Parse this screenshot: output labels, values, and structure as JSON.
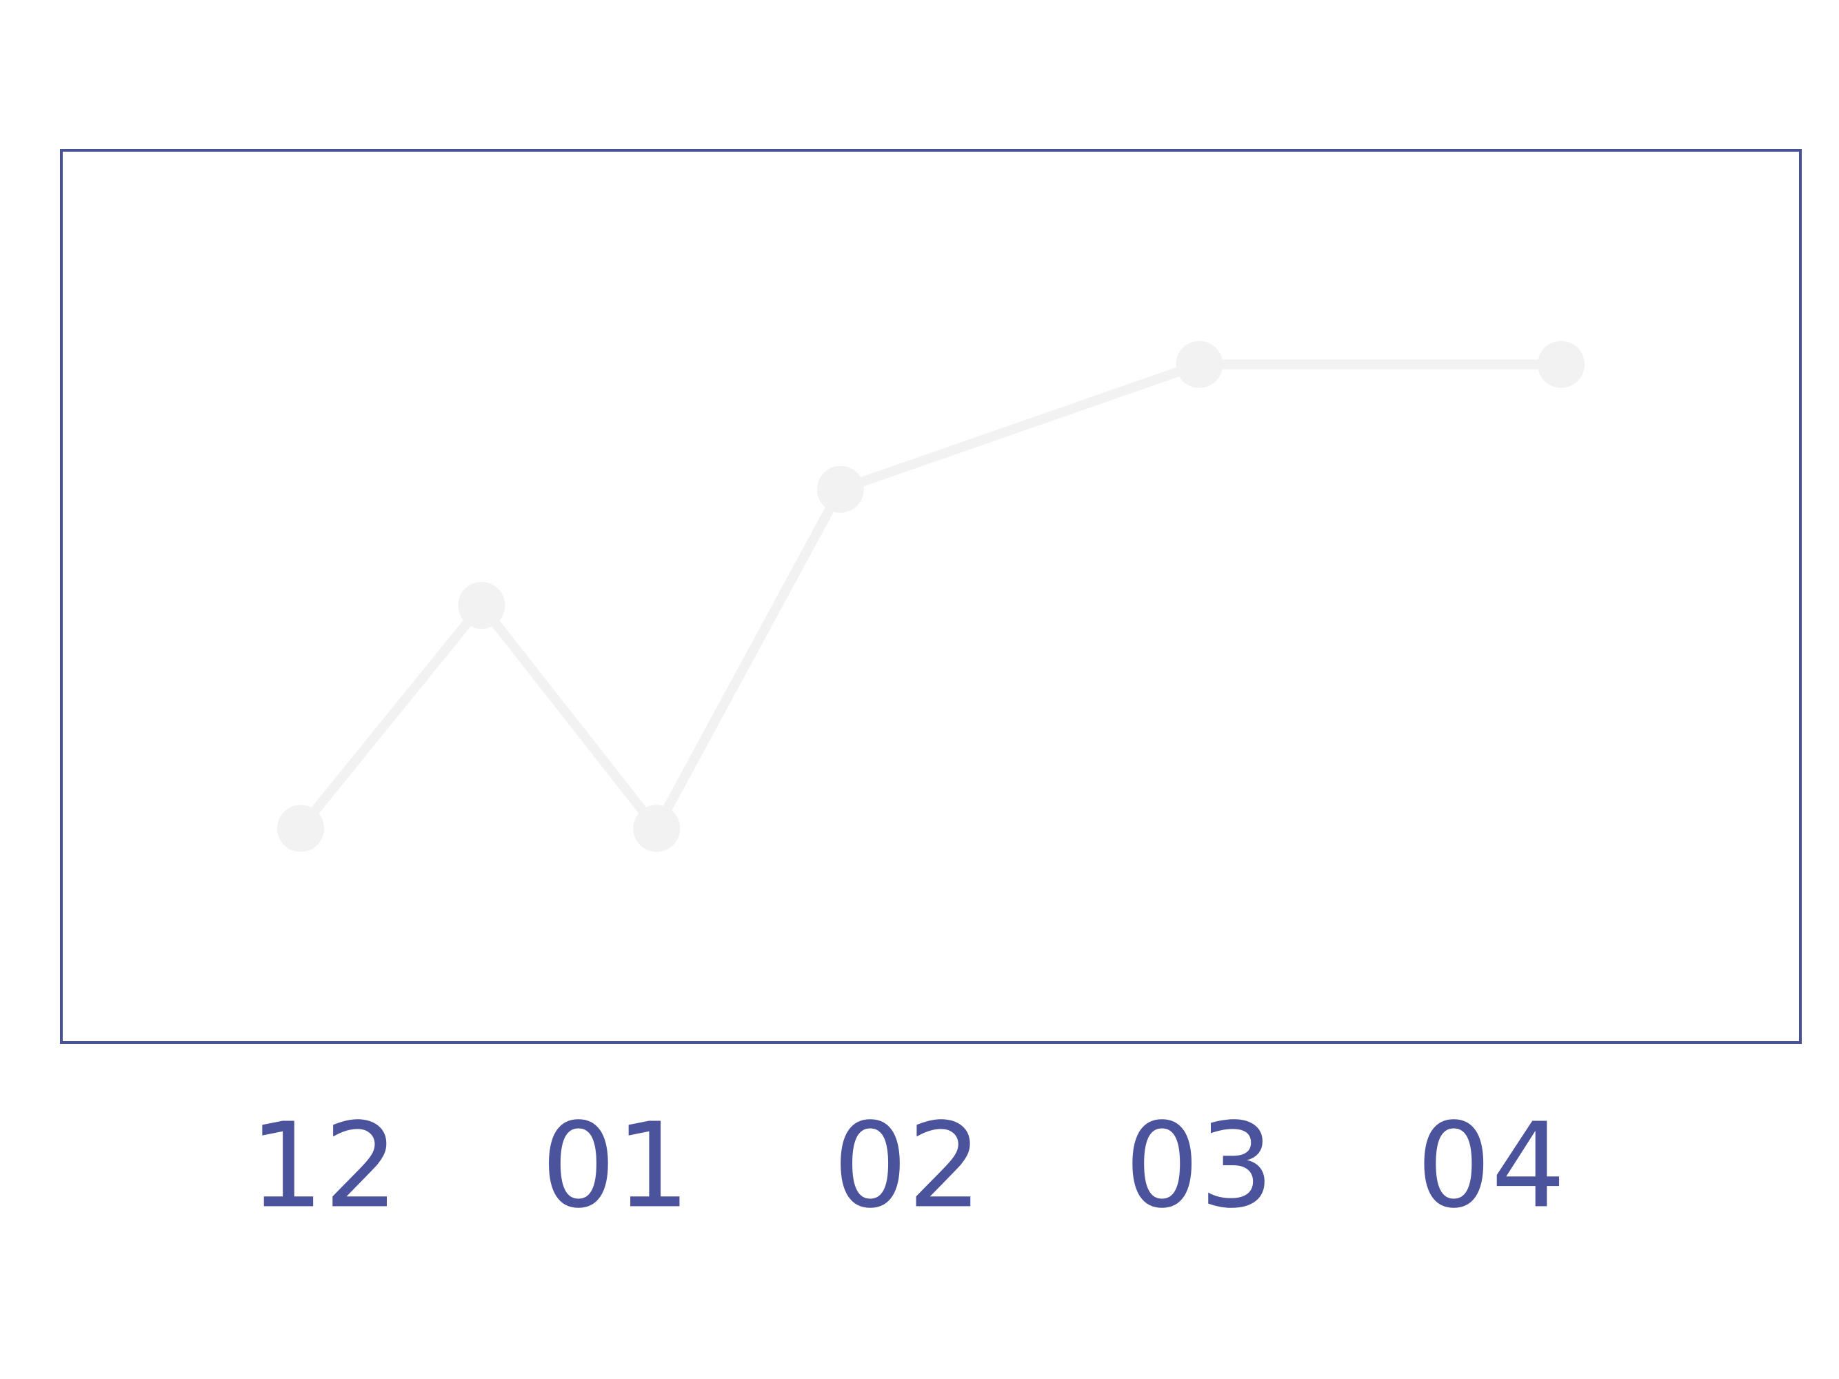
{
  "chart_data": {
    "type": "line",
    "x": [
      -0.08,
      0.54,
      1.14,
      1.77,
      3.0,
      4.24
    ],
    "series": [
      {
        "color": "#f2f2f2",
        "values": [
          24,
          49,
          24,
          62,
          76,
          76
        ]
      }
    ],
    "xlim": [
      -0.9,
      5.06
    ],
    "xticks": [
      {
        "value": 0,
        "label": "12"
      },
      {
        "value": 1,
        "label": "01"
      },
      {
        "value": 2,
        "label": "02"
      },
      {
        "value": 3,
        "label": "03"
      },
      {
        "value": 4,
        "label": "04"
      }
    ],
    "ylim": [
      0,
      100
    ],
    "grid": false
  }
}
